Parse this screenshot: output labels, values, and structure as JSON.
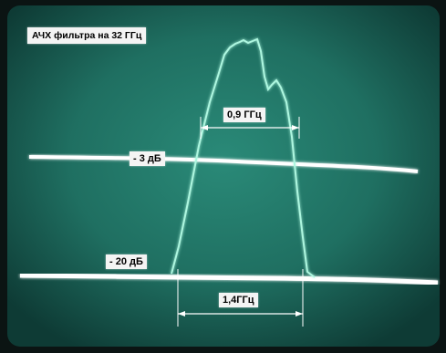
{
  "chart_data": {
    "type": "line",
    "title": "АЧХ фильтра на 32 ГГц",
    "annotations": {
      "bandwidth_minus3": "0,9 ГГц",
      "bandwidth_minus20": "1,4ГГц",
      "level_minus3": "- 3 дБ",
      "level_minus20": "- 20 дБ"
    },
    "levels_db": [
      -3,
      -20
    ],
    "bandwidths_ghz": [
      0.9,
      1.4
    ],
    "grid": false,
    "colors": {
      "screen": "#1d6a5c",
      "trace": "#aef7e0",
      "reference_line": "#ffffff"
    }
  }
}
